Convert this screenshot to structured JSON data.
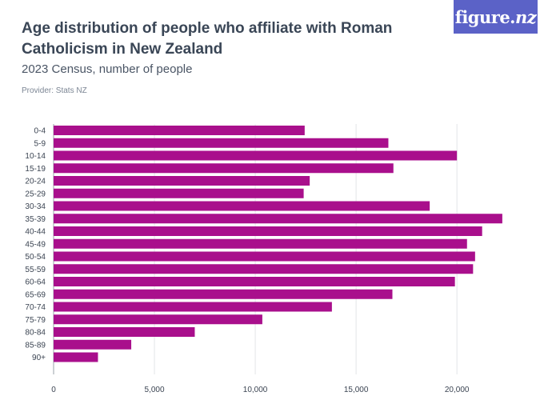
{
  "header": {
    "title": "Age distribution of people who affiliate with Roman Catholicism in New Zealand",
    "subtitle": "2023 Census, number of people",
    "provider": "Provider: Stats NZ"
  },
  "logo": {
    "text_main": "figure.",
    "text_accent": "nz",
    "color": "#5b62c7"
  },
  "chart_data": {
    "type": "bar",
    "orientation": "horizontal",
    "categories": [
      "0-4",
      "5-9",
      "10-14",
      "15-19",
      "20-24",
      "25-29",
      "30-34",
      "35-39",
      "40-44",
      "45-49",
      "50-54",
      "55-59",
      "60-64",
      "65-69",
      "70-74",
      "75-79",
      "80-84",
      "85-89",
      "90+"
    ],
    "values": [
      12450,
      16600,
      20000,
      16850,
      12700,
      12400,
      18650,
      22250,
      21250,
      20500,
      20900,
      20800,
      19900,
      16800,
      13800,
      10350,
      7000,
      3850,
      2200
    ],
    "xlim": [
      0,
      24000
    ],
    "xticks": [
      0,
      5000,
      10000,
      15000,
      20000
    ],
    "xtick_labels": [
      "0",
      "5,000",
      "10,000",
      "15,000",
      "20,000"
    ],
    "bar_color": "#a90f8c",
    "grid": true,
    "title": "Age distribution of people who affiliate with Roman Catholicism in New Zealand",
    "xlabel": "",
    "ylabel": ""
  }
}
